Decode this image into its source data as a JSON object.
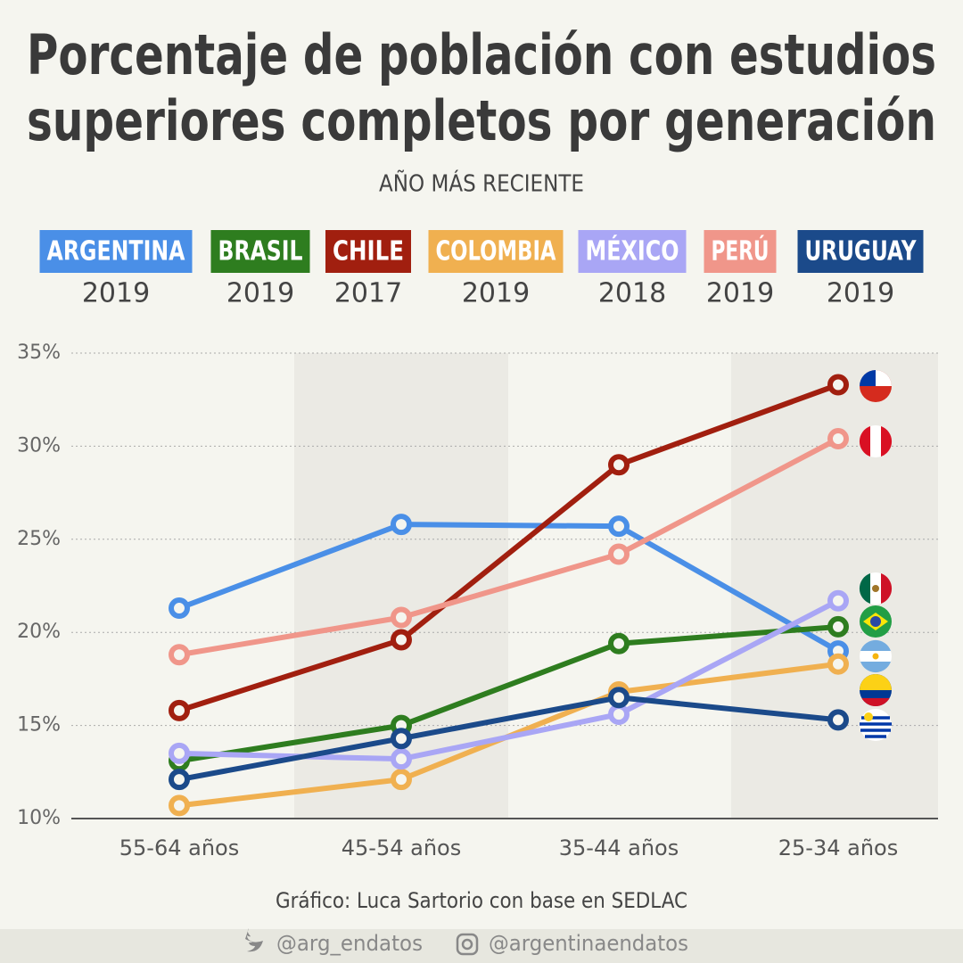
{
  "chart_data": {
    "type": "line",
    "title": [
      "Porcentaje de población con estudios",
      "superiores completos por generación"
    ],
    "subtitle": "AÑO MÁS RECIENTE",
    "categories": [
      "55-64 años",
      "45-54 años",
      "35-44 años",
      "25-34 años"
    ],
    "ylim": [
      10,
      35
    ],
    "yticks": [
      {
        "value": 10,
        "label": "10%"
      },
      {
        "value": 15,
        "label": "15%"
      },
      {
        "value": 20,
        "label": "20%"
      },
      {
        "value": 25,
        "label": "25%"
      },
      {
        "value": 30,
        "label": "30%"
      },
      {
        "value": 35,
        "label": "35%"
      }
    ],
    "grid": true,
    "series": [
      {
        "name": "ARGENTINA",
        "year": "2019",
        "color": "#4a8fe7",
        "values": [
          21.3,
          25.8,
          25.7,
          19.0
        ]
      },
      {
        "name": "BRASIL",
        "year": "2019",
        "color": "#2e7d1f",
        "values": [
          13.1,
          15.0,
          19.4,
          20.3
        ]
      },
      {
        "name": "CHILE",
        "year": "2017",
        "color": "#a11f0f",
        "values": [
          15.8,
          19.6,
          29.0,
          33.3
        ]
      },
      {
        "name": "COLOMBIA",
        "year": "2019",
        "color": "#f0b050",
        "values": [
          10.7,
          12.1,
          16.8,
          18.3
        ]
      },
      {
        "name": "MÉXICO",
        "year": "2018",
        "color": "#a9a6f5",
        "values": [
          13.5,
          13.2,
          15.6,
          21.7
        ]
      },
      {
        "name": "PERÚ",
        "year": "2019",
        "color": "#f0968a",
        "values": [
          18.8,
          20.8,
          24.2,
          30.4
        ]
      },
      {
        "name": "URUGUAY",
        "year": "2019",
        "color": "#1b4a8a",
        "values": [
          12.1,
          14.3,
          16.5,
          15.3
        ]
      }
    ],
    "source": "Gráfico: Luca Sartorio con base en SEDLAC"
  },
  "footer": {
    "twitter": "@arg_endatos",
    "instagram": "@argentinaendatos"
  }
}
